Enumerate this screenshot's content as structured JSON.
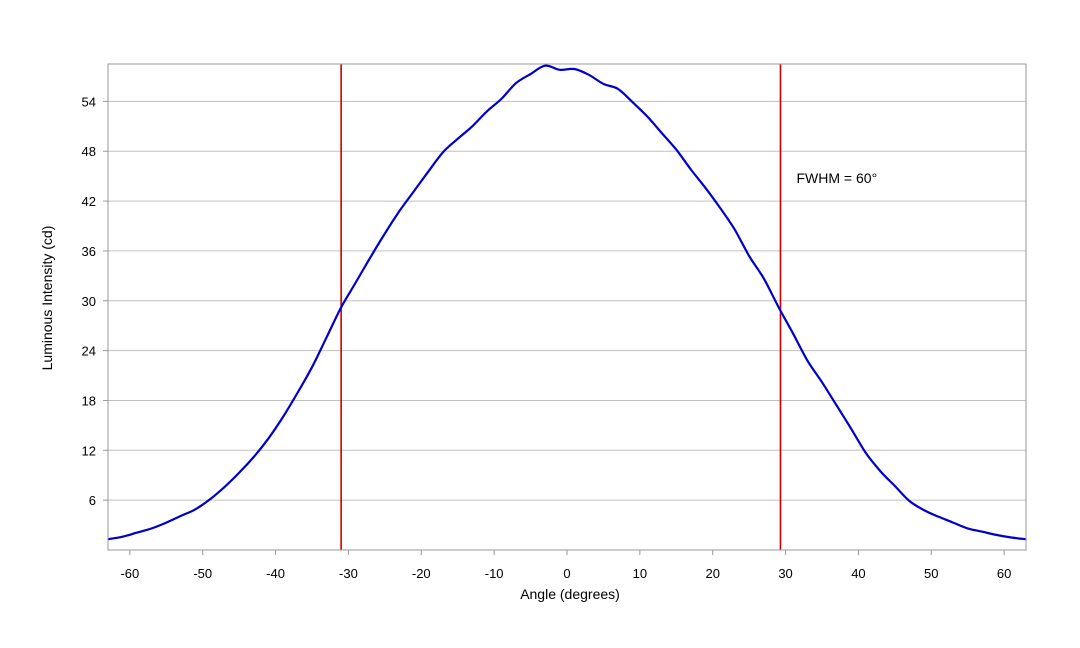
{
  "chart_data": {
    "type": "line",
    "title": "",
    "xlabel": "Angle (degrees)",
    "ylabel": "Luminous Intensity (cd)",
    "xlim": [
      -63,
      63
    ],
    "ylim": [
      0,
      58.5
    ],
    "xticks": [
      -60,
      -50,
      -40,
      -30,
      -20,
      -10,
      0,
      10,
      20,
      30,
      40,
      50,
      60
    ],
    "yticks": [
      6,
      12,
      18,
      24,
      30,
      36,
      42,
      48,
      54
    ],
    "grid": "horizontal",
    "legend": "none",
    "series": [
      {
        "color": "#0000cc",
        "x": [
          -63,
          -61,
          -59,
          -57,
          -55,
          -53,
          -51,
          -49,
          -47,
          -45,
          -43,
          -41,
          -39,
          -37,
          -35,
          -33,
          -31,
          -29,
          -27,
          -25,
          -23,
          -21,
          -19,
          -17,
          -15,
          -13,
          -11,
          -9,
          -7,
          -5,
          -3,
          -1,
          1,
          3,
          5,
          7,
          9,
          11,
          13,
          15,
          17,
          19,
          21,
          23,
          25,
          27,
          29,
          31,
          33,
          35,
          37,
          39,
          41,
          43,
          45,
          47,
          49,
          51,
          53,
          55,
          57,
          59,
          61,
          63
        ],
        "y": [
          1.3,
          1.6,
          2.1,
          2.6,
          3.3,
          4.1,
          4.9,
          6.1,
          7.6,
          9.3,
          11.2,
          13.4,
          16.0,
          18.9,
          22.0,
          25.6,
          29.2,
          32.2,
          35.2,
          38.1,
          40.8,
          43.2,
          45.6,
          47.9,
          49.5,
          51.0,
          52.8,
          54.3,
          56.2,
          57.3,
          58.3,
          57.8,
          57.9,
          57.2,
          56.1,
          55.5,
          53.9,
          52.2,
          50.2,
          48.2,
          45.8,
          43.6,
          41.2,
          38.6,
          35.4,
          32.7,
          29.3,
          26.1,
          22.8,
          20.2,
          17.4,
          14.6,
          11.7,
          9.5,
          7.7,
          5.9,
          4.8,
          4.0,
          3.3,
          2.6,
          2.2,
          1.8,
          1.5,
          1.3
        ]
      }
    ],
    "reference_lines": [
      {
        "x": -31,
        "color": "#cc0000"
      },
      {
        "x": 29.3,
        "color": "#cc0000"
      }
    ],
    "annotations": [
      {
        "text": "FWHM = 60°",
        "x": 31.5,
        "y": 44.8
      }
    ]
  }
}
